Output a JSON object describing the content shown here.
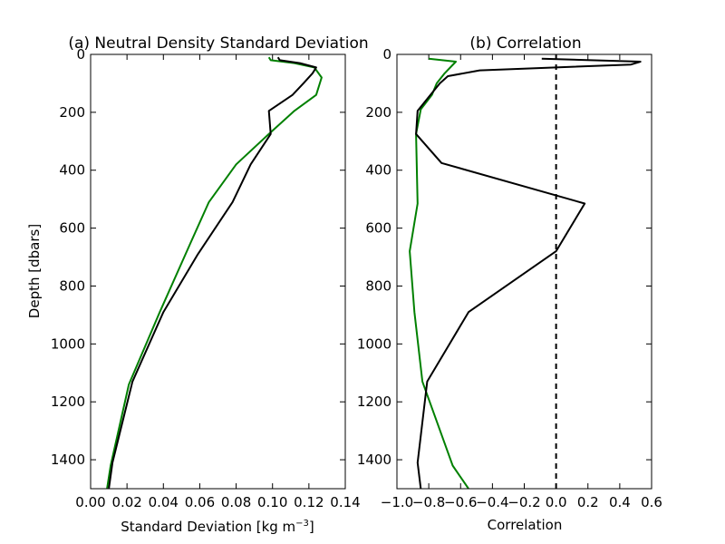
{
  "chart_data": [
    {
      "type": "line",
      "title": "(a) Neutral Density Standard Deviation",
      "xlabel": "Standard Deviation [kg m",
      "xlabel_sup": "−3",
      "xlabel_end": "]",
      "ylabel": "Depth [dbars]",
      "xlim": [
        0.0,
        0.14
      ],
      "ylim": [
        1500,
        0
      ],
      "y_inverted": true,
      "xticks": [
        0.0,
        0.02,
        0.04,
        0.06,
        0.08,
        0.1,
        0.12,
        0.14
      ],
      "xtick_labels": [
        "0.00",
        "0.02",
        "0.04",
        "0.06",
        "0.08",
        "0.10",
        "0.12",
        "0.14"
      ],
      "yticks": [
        0,
        200,
        400,
        600,
        800,
        1000,
        1200,
        1400
      ],
      "ytick_labels": [
        "0",
        "200",
        "400",
        "600",
        "800",
        "1000",
        "1200",
        "1400"
      ],
      "grid": false,
      "series": [
        {
          "color": "#000000",
          "points": [
            [
              0.103,
              10
            ],
            [
              0.104,
              20
            ],
            [
              0.115,
              30
            ],
            [
              0.124,
              45
            ],
            [
              0.122,
              65
            ],
            [
              0.117,
              100
            ],
            [
              0.111,
              140
            ],
            [
              0.098,
              195
            ],
            [
              0.099,
              275
            ],
            [
              0.088,
              380
            ],
            [
              0.078,
              510
            ],
            [
              0.059,
              690
            ],
            [
              0.04,
              890
            ],
            [
              0.023,
              1130
            ],
            [
              0.012,
              1410
            ],
            [
              0.01,
              1500
            ]
          ]
        },
        {
          "color": "#008000",
          "points": [
            [
              0.098,
              10
            ],
            [
              0.099,
              20
            ],
            [
              0.112,
              30
            ],
            [
              0.123,
              45
            ],
            [
              0.127,
              80
            ],
            [
              0.124,
              140
            ],
            [
              0.112,
              195
            ],
            [
              0.098,
              275
            ],
            [
              0.08,
              380
            ],
            [
              0.065,
              510
            ],
            [
              0.055,
              650
            ],
            [
              0.038,
              890
            ],
            [
              0.021,
              1140
            ],
            [
              0.011,
              1420
            ],
            [
              0.009,
              1500
            ]
          ]
        }
      ]
    },
    {
      "type": "line",
      "title": "(b) Correlation",
      "xlabel": "Correlation",
      "xlim": [
        -1.0,
        0.6
      ],
      "ylim": [
        1500,
        0
      ],
      "y_inverted": true,
      "xticks": [
        -1.0,
        -0.8,
        -0.6,
        -0.4,
        -0.2,
        0.0,
        0.2,
        0.4,
        0.6
      ],
      "xtick_labels": [
        "−1.0",
        "−0.8",
        "−0.6",
        "−0.4",
        "−0.2",
        "0.0",
        "0.2",
        "0.4",
        "0.6"
      ],
      "yticks": [
        0,
        200,
        400,
        600,
        800,
        1000,
        1200,
        1400
      ],
      "ytick_labels": [
        "0",
        "200",
        "400",
        "600",
        "800",
        "1000",
        "1200",
        "1400"
      ],
      "grid": false,
      "reference_line": {
        "x": 0.0,
        "style": "dashed",
        "color": "#000000"
      },
      "series": [
        {
          "color": "#000000",
          "points": [
            [
              -0.09,
              15
            ],
            [
              0.53,
              25
            ],
            [
              0.47,
              35
            ],
            [
              -0.48,
              55
            ],
            [
              -0.68,
              75
            ],
            [
              -0.73,
              100
            ],
            [
              -0.79,
              140
            ],
            [
              -0.87,
              195
            ],
            [
              -0.88,
              275
            ],
            [
              -0.72,
              375
            ],
            [
              0.18,
              515
            ],
            [
              0.0,
              680
            ],
            [
              -0.55,
              890
            ],
            [
              -0.81,
              1130
            ],
            [
              -0.87,
              1410
            ],
            [
              -0.85,
              1500
            ]
          ]
        },
        {
          "color": "#008000",
          "points": [
            [
              -0.8,
              15
            ],
            [
              -0.63,
              25
            ],
            [
              -0.7,
              65
            ],
            [
              -0.75,
              100
            ],
            [
              -0.78,
              140
            ],
            [
              -0.85,
              190
            ],
            [
              -0.88,
              275
            ],
            [
              -0.87,
              515
            ],
            [
              -0.92,
              680
            ],
            [
              -0.89,
              890
            ],
            [
              -0.84,
              1130
            ],
            [
              -0.65,
              1420
            ],
            [
              -0.55,
              1500
            ]
          ]
        }
      ]
    }
  ]
}
